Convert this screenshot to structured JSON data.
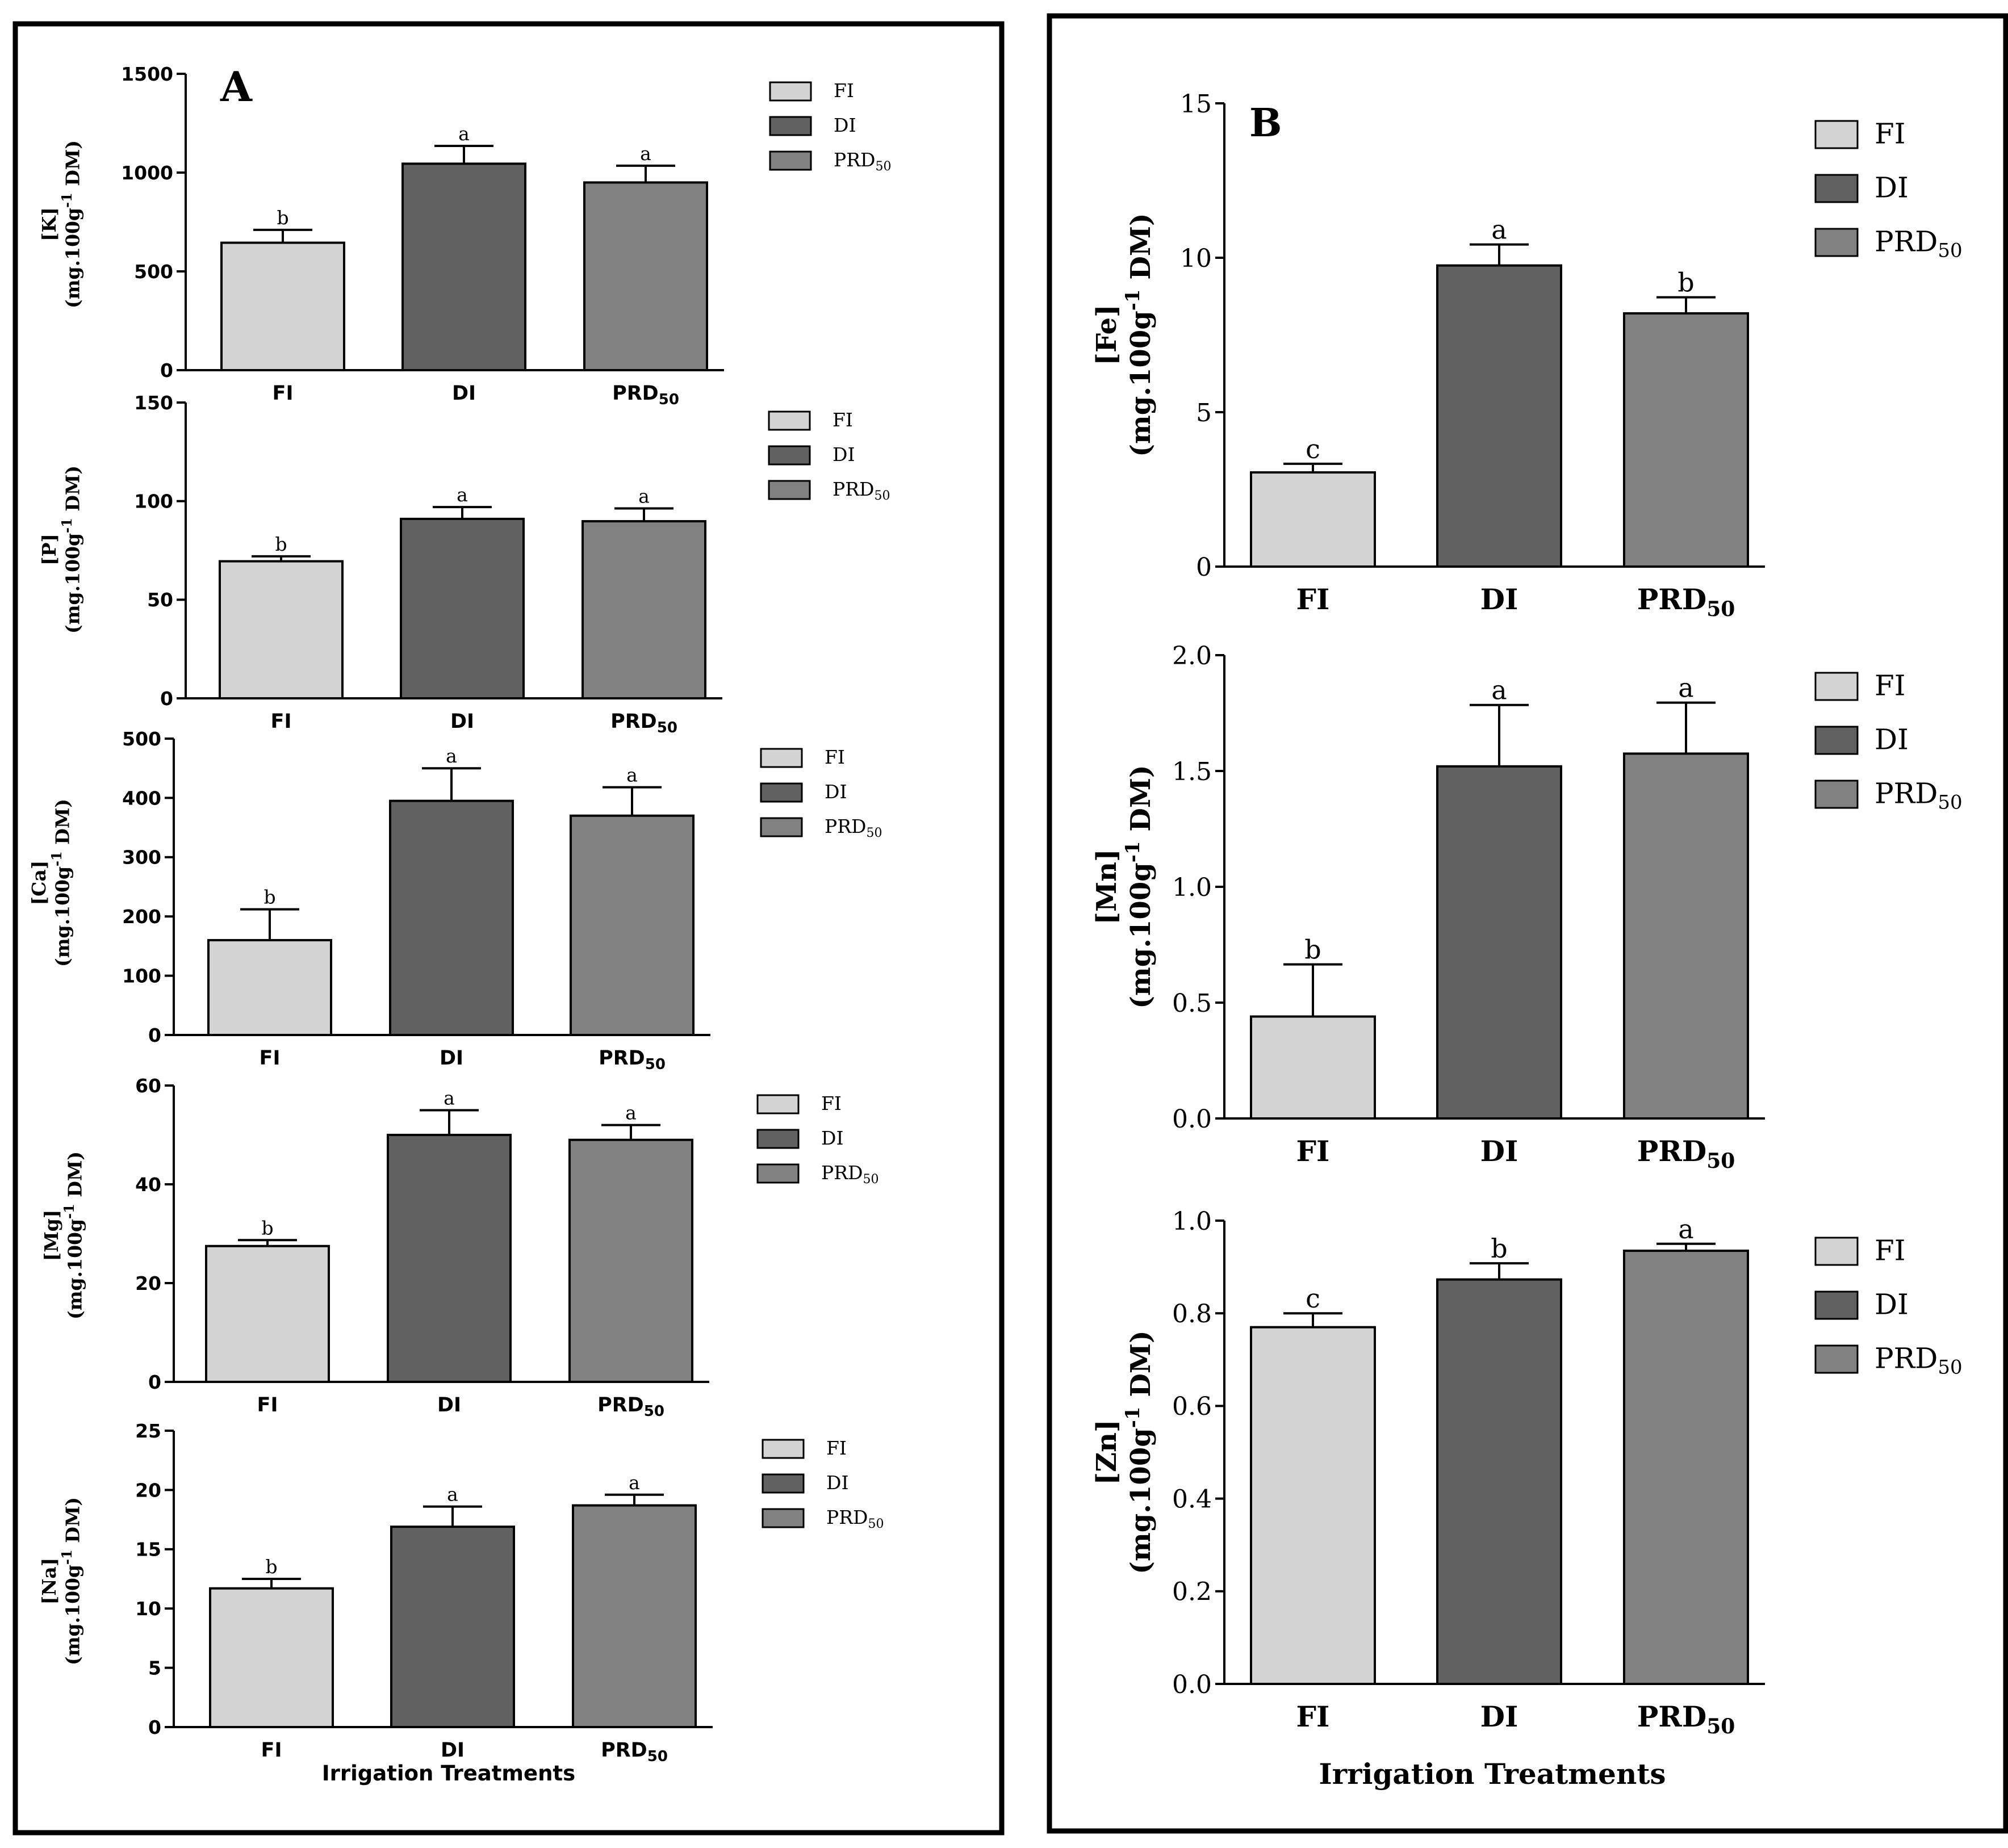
{
  "figure": {
    "panel_a_letter": "A",
    "panel_b_letter": "B",
    "x_axis_title": "Irrigation Treatments",
    "treatments": [
      "FI",
      "DI",
      "PRD50"
    ],
    "legend_labels": [
      "FI",
      "DI",
      "PRD50"
    ],
    "colors": {
      "FI": "#d3d3d3",
      "DI": "#616161",
      "PRD50": "#818181"
    }
  },
  "chart_data": [
    {
      "id": "K",
      "panel": "A",
      "type": "bar",
      "ylabel_element": "[K]",
      "ylabel_unit": "(mg.100g-1 DM)",
      "categories": [
        "FI",
        "DI",
        "PRD50"
      ],
      "values": [
        645,
        1045,
        950
      ],
      "errors": [
        65,
        90,
        85
      ],
      "letters": [
        "b",
        "a",
        "a"
      ],
      "ylim": [
        0,
        1500
      ],
      "yticks": [
        0,
        500,
        1000,
        1500
      ]
    },
    {
      "id": "P",
      "panel": "A",
      "type": "bar",
      "ylabel_element": "[P]",
      "ylabel_unit": "(mg.100g-1 DM)",
      "categories": [
        "FI",
        "DI",
        "PRD50"
      ],
      "values": [
        69.5,
        91,
        89.8
      ],
      "errors": [
        2.5,
        6,
        6.5
      ],
      "letters": [
        "b",
        "a",
        "a"
      ],
      "ylim": [
        0,
        150
      ],
      "yticks": [
        0,
        50,
        100,
        150
      ]
    },
    {
      "id": "Ca",
      "panel": "A",
      "type": "bar",
      "ylabel_element": "[Ca]",
      "ylabel_unit": "(mg.100g-1 DM)",
      "categories": [
        "FI",
        "DI",
        "PRD50"
      ],
      "values": [
        160,
        395,
        370
      ],
      "errors": [
        52,
        55,
        48
      ],
      "letters": [
        "b",
        "a",
        "a"
      ],
      "ylim": [
        0,
        500
      ],
      "yticks": [
        0,
        100,
        200,
        300,
        400,
        500
      ]
    },
    {
      "id": "Mg",
      "panel": "A",
      "type": "bar",
      "ylabel_element": "[Mg]",
      "ylabel_unit": "(mg.100g-1 DM)",
      "categories": [
        "FI",
        "DI",
        "PRD50"
      ],
      "values": [
        27.5,
        50,
        49
      ],
      "errors": [
        1.2,
        5,
        3
      ],
      "letters": [
        "b",
        "a",
        "a"
      ],
      "ylim": [
        0,
        60
      ],
      "yticks": [
        0,
        20,
        40,
        60
      ]
    },
    {
      "id": "Na",
      "panel": "A",
      "type": "bar",
      "ylabel_element": "[Na]",
      "ylabel_unit": "(mg.100g-1 DM)",
      "categories": [
        "FI",
        "DI",
        "PRD50"
      ],
      "values": [
        11.7,
        16.9,
        18.7
      ],
      "errors": [
        0.8,
        1.7,
        0.9
      ],
      "letters": [
        "b",
        "a",
        "a"
      ],
      "ylim": [
        0,
        25
      ],
      "yticks": [
        0,
        5,
        10,
        15,
        20,
        25
      ]
    },
    {
      "id": "Fe",
      "panel": "B",
      "type": "bar",
      "ylabel_element": "[Fe]",
      "ylabel_unit": "(mg.100g-1 DM)",
      "categories": [
        "FI",
        "DI",
        "PRD50"
      ],
      "values": [
        3.05,
        9.75,
        8.2
      ],
      "errors": [
        0.28,
        0.68,
        0.52
      ],
      "letters": [
        "c",
        "a",
        "b"
      ],
      "ylim": [
        0,
        15
      ],
      "yticks": [
        0,
        5,
        10,
        15
      ]
    },
    {
      "id": "Mn",
      "panel": "B",
      "type": "bar",
      "ylabel_element": "[Mn]",
      "ylabel_unit": "(mg.100g-1 DM)",
      "categories": [
        "FI",
        "DI",
        "PRD50"
      ],
      "values": [
        0.44,
        1.52,
        1.575
      ],
      "errors": [
        0.225,
        0.265,
        0.22
      ],
      "letters": [
        "b",
        "a",
        "a"
      ],
      "ylim": [
        0,
        2.0
      ],
      "yticks": [
        "0.0",
        "0.5",
        "1.0",
        "1.5",
        "2.0"
      ]
    },
    {
      "id": "Zn",
      "panel": "B",
      "type": "bar",
      "ylabel_element": "[Zn]",
      "ylabel_unit": "(mg.100g-1 DM)",
      "categories": [
        "FI",
        "DI",
        "PRD50"
      ],
      "values": [
        0.77,
        0.873,
        0.935
      ],
      "errors": [
        0.03,
        0.035,
        0.015
      ],
      "letters": [
        "c",
        "b",
        "a"
      ],
      "ylim": [
        0,
        1.0
      ],
      "yticks": [
        "0.0",
        "0.2",
        "0.4",
        "0.6",
        "0.8",
        "1.0"
      ]
    }
  ]
}
